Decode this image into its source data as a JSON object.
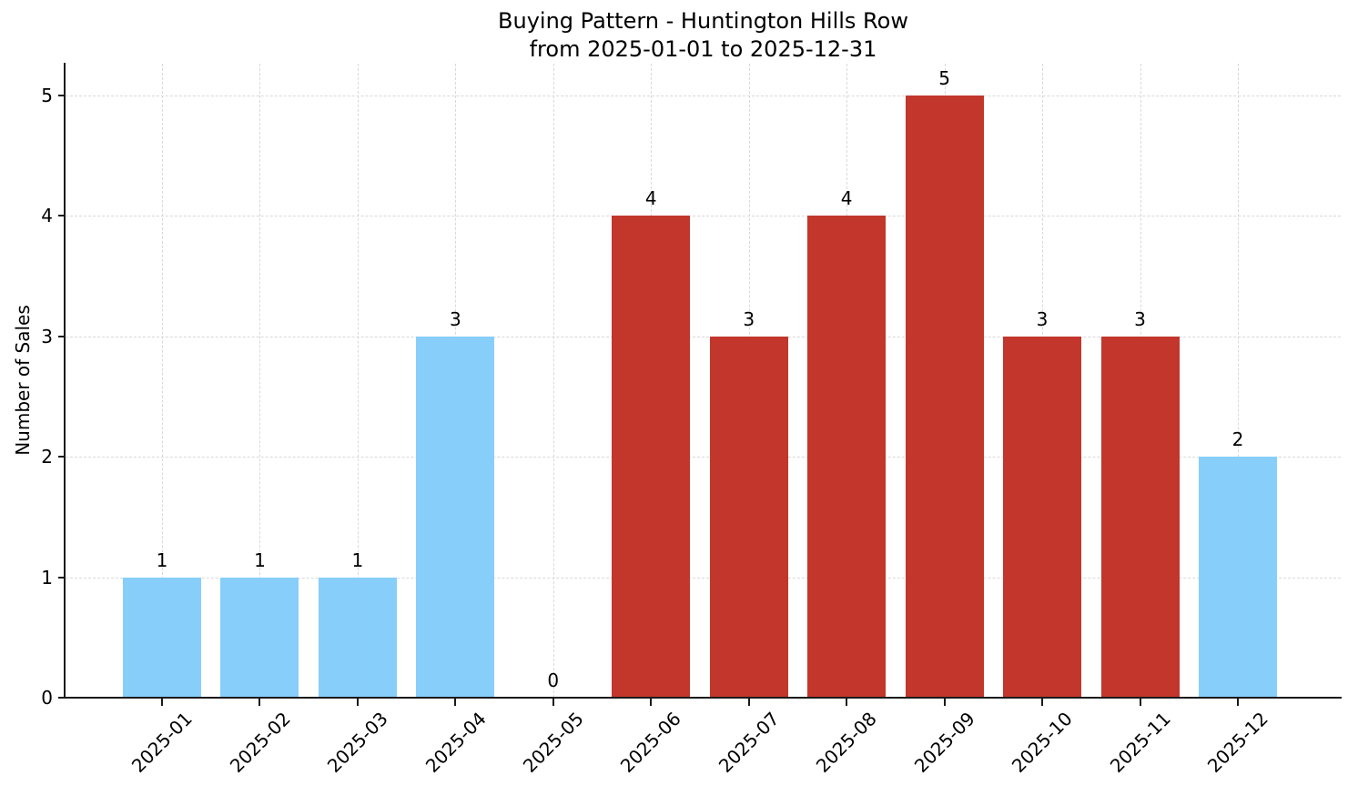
{
  "chart_data": {
    "type": "bar",
    "title": "Buying Pattern - Huntington Hills Row\nfrom 2025-01-01 to 2025-12-31",
    "title_line1": "Buying Pattern - Huntington Hills Row",
    "title_line2": "from 2025-01-01 to 2025-12-31",
    "xlabel": "",
    "ylabel": "Number of Sales",
    "categories": [
      "2025-01",
      "2025-02",
      "2025-03",
      "2025-04",
      "2025-05",
      "2025-06",
      "2025-07",
      "2025-08",
      "2025-09",
      "2025-10",
      "2025-11",
      "2025-12"
    ],
    "values": [
      1,
      1,
      1,
      3,
      0,
      4,
      3,
      4,
      5,
      3,
      3,
      2
    ],
    "value_labels": [
      "1",
      "1",
      "1",
      "3",
      "0",
      "4",
      "3",
      "4",
      "5",
      "3",
      "3",
      "2"
    ],
    "bar_colors": [
      "#87CEFA",
      "#87CEFA",
      "#87CEFA",
      "#87CEFA",
      null,
      "#C2362B",
      "#C2362B",
      "#C2362B",
      "#C2362B",
      "#C2362B",
      "#C2362B",
      "#87CEFA"
    ],
    "yticks": [
      0,
      1,
      2,
      3,
      4,
      5
    ],
    "ylim": [
      0,
      5.26
    ],
    "grid": true,
    "legend": null,
    "colors": {
      "bar_blue": "#87CEFA",
      "bar_red": "#C2362B",
      "grid": "#d9d9d9",
      "spine": "#1a1a1a",
      "text": "#000000",
      "background": "#ffffff"
    }
  }
}
